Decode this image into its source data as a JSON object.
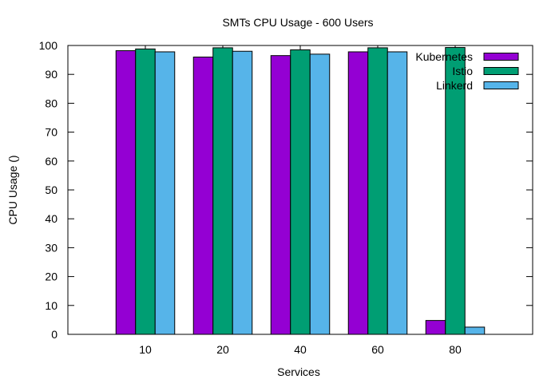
{
  "chart_data": {
    "type": "bar",
    "title": "SMTs CPU Usage - 600 Users",
    "xlabel": "Services",
    "ylabel": "CPU Usage ()",
    "categories": [
      "10",
      "20",
      "40",
      "60",
      "80"
    ],
    "ylim": [
      0,
      100
    ],
    "yticks": [
      0,
      10,
      20,
      30,
      40,
      50,
      60,
      70,
      80,
      90,
      100
    ],
    "grid": false,
    "legend_position": "top-right",
    "series": [
      {
        "name": "Kubernetes",
        "color": "#9400d3",
        "values": [
          98.2,
          96.0,
          96.5,
          97.8,
          4.8
        ]
      },
      {
        "name": "Istio",
        "color": "#009e73",
        "values": [
          98.8,
          99.2,
          98.5,
          99.2,
          99.3
        ]
      },
      {
        "name": "Linkerd",
        "color": "#56b4e9",
        "values": [
          97.8,
          98.0,
          97.0,
          97.8,
          2.5
        ]
      }
    ]
  }
}
